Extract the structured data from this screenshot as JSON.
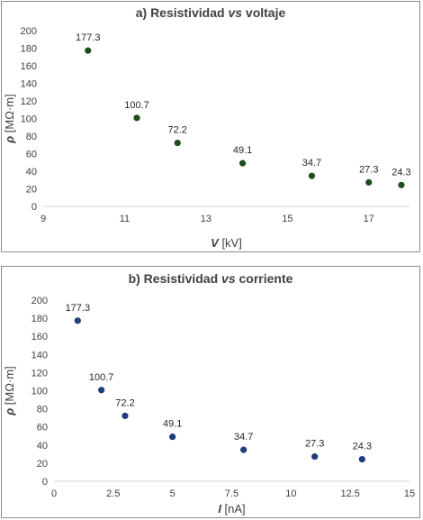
{
  "chart_data": [
    {
      "type": "scatter",
      "title_prefix": "a) Resistividad ",
      "title_italic": "vs",
      "title_suffix": " voltaje",
      "xlabel_symbol": "V",
      "xlabel_unit": " [kV]",
      "ylabel_symbol": "ρ",
      "ylabel_unit": " [MΩ·m]",
      "xlim": [
        9,
        18
      ],
      "ylim": [
        0,
        200
      ],
      "xticks": [
        "9",
        "11",
        "13",
        "15",
        "17"
      ],
      "xtick_values": [
        9,
        11,
        13,
        15,
        17
      ],
      "yticks": [
        "0",
        "20",
        "40",
        "60",
        "80",
        "100",
        "120",
        "140",
        "160",
        "180",
        "200"
      ],
      "ytick_values": [
        0,
        20,
        40,
        60,
        80,
        100,
        120,
        140,
        160,
        180,
        200
      ],
      "grid": false,
      "marker_color": "#1e4d1e",
      "x": [
        10.1,
        11.3,
        12.3,
        13.9,
        15.6,
        17.0,
        17.8
      ],
      "y": [
        177.3,
        100.7,
        72.2,
        49.1,
        34.7,
        27.3,
        24.3
      ],
      "labels": [
        "177.3",
        "100.7",
        "72.2",
        "49.1",
        "34.7",
        "27.3",
        "24.3"
      ]
    },
    {
      "type": "scatter",
      "title_prefix": "b) Resistividad ",
      "title_italic": "vs",
      "title_suffix": " corriente",
      "xlabel_symbol": "I",
      "xlabel_unit": " [nA]",
      "ylabel_symbol": "ρ",
      "ylabel_unit": " [MΩ·m]",
      "xlim": [
        0,
        15
      ],
      "ylim": [
        0,
        200
      ],
      "xticks": [
        "0",
        "2.5",
        "5",
        "7.5",
        "10",
        "12.5",
        "15"
      ],
      "xtick_values": [
        0,
        2.5,
        5,
        7.5,
        10,
        12.5,
        15
      ],
      "yticks": [
        "0",
        "20",
        "40",
        "60",
        "80",
        "100",
        "120",
        "140",
        "160",
        "180",
        "200"
      ],
      "ytick_values": [
        0,
        20,
        40,
        60,
        80,
        100,
        120,
        140,
        160,
        180,
        200
      ],
      "grid": false,
      "marker_color": "#1f3d7a",
      "x": [
        1,
        2,
        3,
        5,
        8,
        11,
        13
      ],
      "y": [
        177.3,
        100.7,
        72.2,
        49.1,
        34.7,
        27.3,
        24.3
      ],
      "labels": [
        "177.3",
        "100.7",
        "72.2",
        "49.1",
        "34.7",
        "27.3",
        "24.3"
      ]
    }
  ]
}
